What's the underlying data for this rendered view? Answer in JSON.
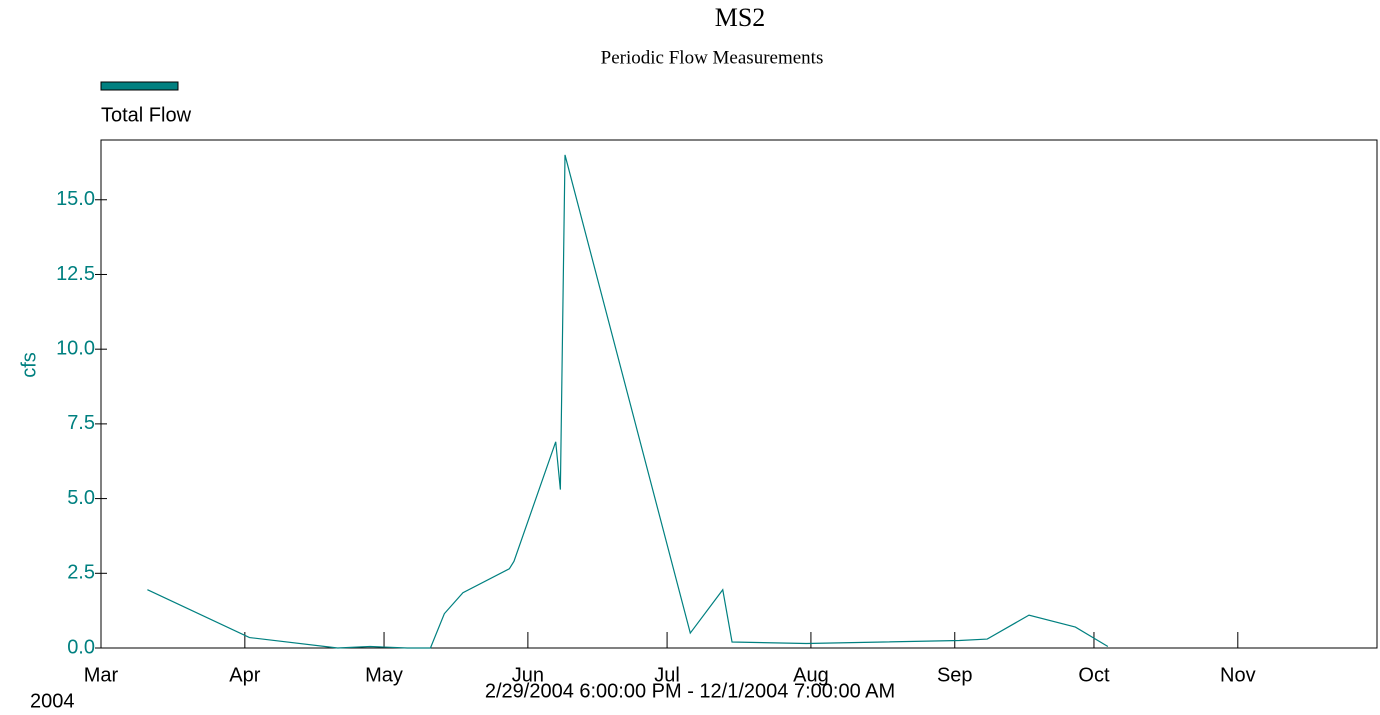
{
  "chart_data": {
    "type": "line",
    "title": "MS2",
    "subtitle": "Periodic Flow Measurements",
    "y_label": "cfs",
    "x_year_label": "2004",
    "x_range_label": "2/29/2004 6:00:00 PM - 12/1/2004 7:00:00 AM",
    "legend": "top-left",
    "x": [
      "2004-03-11",
      "2004-04-02",
      "2004-04-21",
      "2004-04-28",
      "2004-05-06",
      "2004-05-11",
      "2004-05-14",
      "2004-05-18",
      "2004-05-28",
      "2004-05-29",
      "2004-06-07",
      "2004-06-08",
      "2004-06-09",
      "2004-07-06",
      "2004-07-13",
      "2004-07-15",
      "2004-07-31",
      "2004-09-02",
      "2004-09-08",
      "2004-09-17",
      "2004-09-27",
      "2004-10-04"
    ],
    "series": [
      {
        "name": "Total Flow",
        "color": "#008080",
        "values": [
          1.95,
          0.35,
          0.0,
          0.05,
          0.0,
          0.0,
          1.15,
          1.85,
          2.65,
          2.9,
          6.9,
          5.3,
          16.5,
          0.5,
          1.95,
          0.2,
          0.15,
          0.25,
          0.3,
          1.1,
          0.7,
          0.05
        ]
      }
    ],
    "xlim": [
      "2004-03-01",
      "2004-12-01"
    ],
    "xticks": [
      {
        "value": "2004-03-01",
        "label": "Mar"
      },
      {
        "value": "2004-04-01",
        "label": "Apr"
      },
      {
        "value": "2004-05-01",
        "label": "May"
      },
      {
        "value": "2004-06-01",
        "label": "Jun"
      },
      {
        "value": "2004-07-01",
        "label": "Jul"
      },
      {
        "value": "2004-08-01",
        "label": "Aug"
      },
      {
        "value": "2004-09-01",
        "label": "Sep"
      },
      {
        "value": "2004-10-01",
        "label": "Oct"
      },
      {
        "value": "2004-11-01",
        "label": "Nov"
      }
    ],
    "ylim": [
      0,
      17
    ],
    "yticks": [
      {
        "value": 0,
        "label": "0.0"
      },
      2.5,
      {
        "value": 5,
        "label": "5.0"
      },
      7.5,
      {
        "value": 10,
        "label": "10.0"
      },
      12.5,
      {
        "value": 15,
        "label": "15.0"
      }
    ],
    "grid": false
  }
}
